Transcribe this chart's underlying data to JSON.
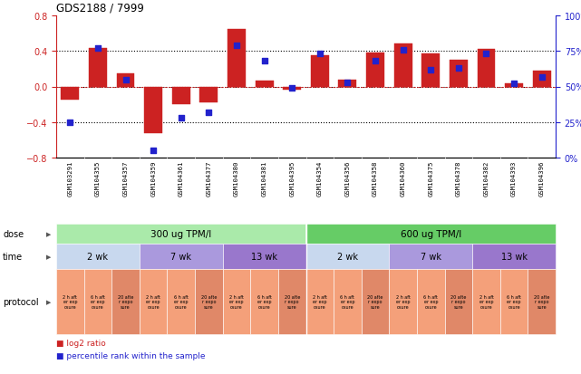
{
  "title": "GDS2188 / 7999",
  "samples": [
    "GSM103291",
    "GSM104355",
    "GSM104357",
    "GSM104359",
    "GSM104361",
    "GSM104377",
    "GSM104380",
    "GSM104381",
    "GSM104395",
    "GSM104354",
    "GSM104356",
    "GSM104358",
    "GSM104360",
    "GSM104375",
    "GSM104378",
    "GSM104382",
    "GSM104393",
    "GSM104396"
  ],
  "log2_ratio": [
    -0.15,
    0.43,
    0.15,
    -0.52,
    -0.2,
    -0.18,
    0.65,
    0.07,
    -0.04,
    0.35,
    0.08,
    0.38,
    0.48,
    0.37,
    0.3,
    0.42,
    0.04,
    0.18
  ],
  "percentile": [
    25,
    77,
    55,
    5,
    28,
    32,
    79,
    68,
    49,
    73,
    53,
    68,
    76,
    62,
    63,
    73,
    52,
    57
  ],
  "dose_groups": [
    {
      "label": "300 ug TPM/l",
      "start": 0,
      "end": 9,
      "color": "#aaeaaa"
    },
    {
      "label": "600 ug TPM/l",
      "start": 9,
      "end": 18,
      "color": "#66cc66"
    }
  ],
  "time_groups": [
    {
      "label": "2 wk",
      "start": 0,
      "end": 3,
      "color": "#c8d8ee"
    },
    {
      "label": "7 wk",
      "start": 3,
      "end": 6,
      "color": "#aa99dd"
    },
    {
      "label": "13 wk",
      "start": 6,
      "end": 9,
      "color": "#9977cc"
    },
    {
      "label": "2 wk",
      "start": 9,
      "end": 12,
      "color": "#c8d8ee"
    },
    {
      "label": "7 wk",
      "start": 12,
      "end": 15,
      "color": "#aa99dd"
    },
    {
      "label": "13 wk",
      "start": 15,
      "end": 18,
      "color": "#9977cc"
    }
  ],
  "proto_labels": [
    "2 h aft\ner exp\nosure",
    "6 h aft\ner exp\nosure",
    "20 afte\nr expo\nsure"
  ],
  "proto_color_light": "#f4a07a",
  "proto_color_dark": "#e08868",
  "bar_color": "#cc2222",
  "dot_color": "#2222cc",
  "sample_bg": "#c8c8c8",
  "ylim": [
    -0.8,
    0.8
  ],
  "yticks": [
    -0.8,
    -0.4,
    0.0,
    0.4,
    0.8
  ],
  "y2ticks": [
    0,
    25,
    50,
    75,
    100
  ],
  "y2ticklabels": [
    "0%",
    "25%",
    "50%",
    "75%",
    "100%"
  ]
}
